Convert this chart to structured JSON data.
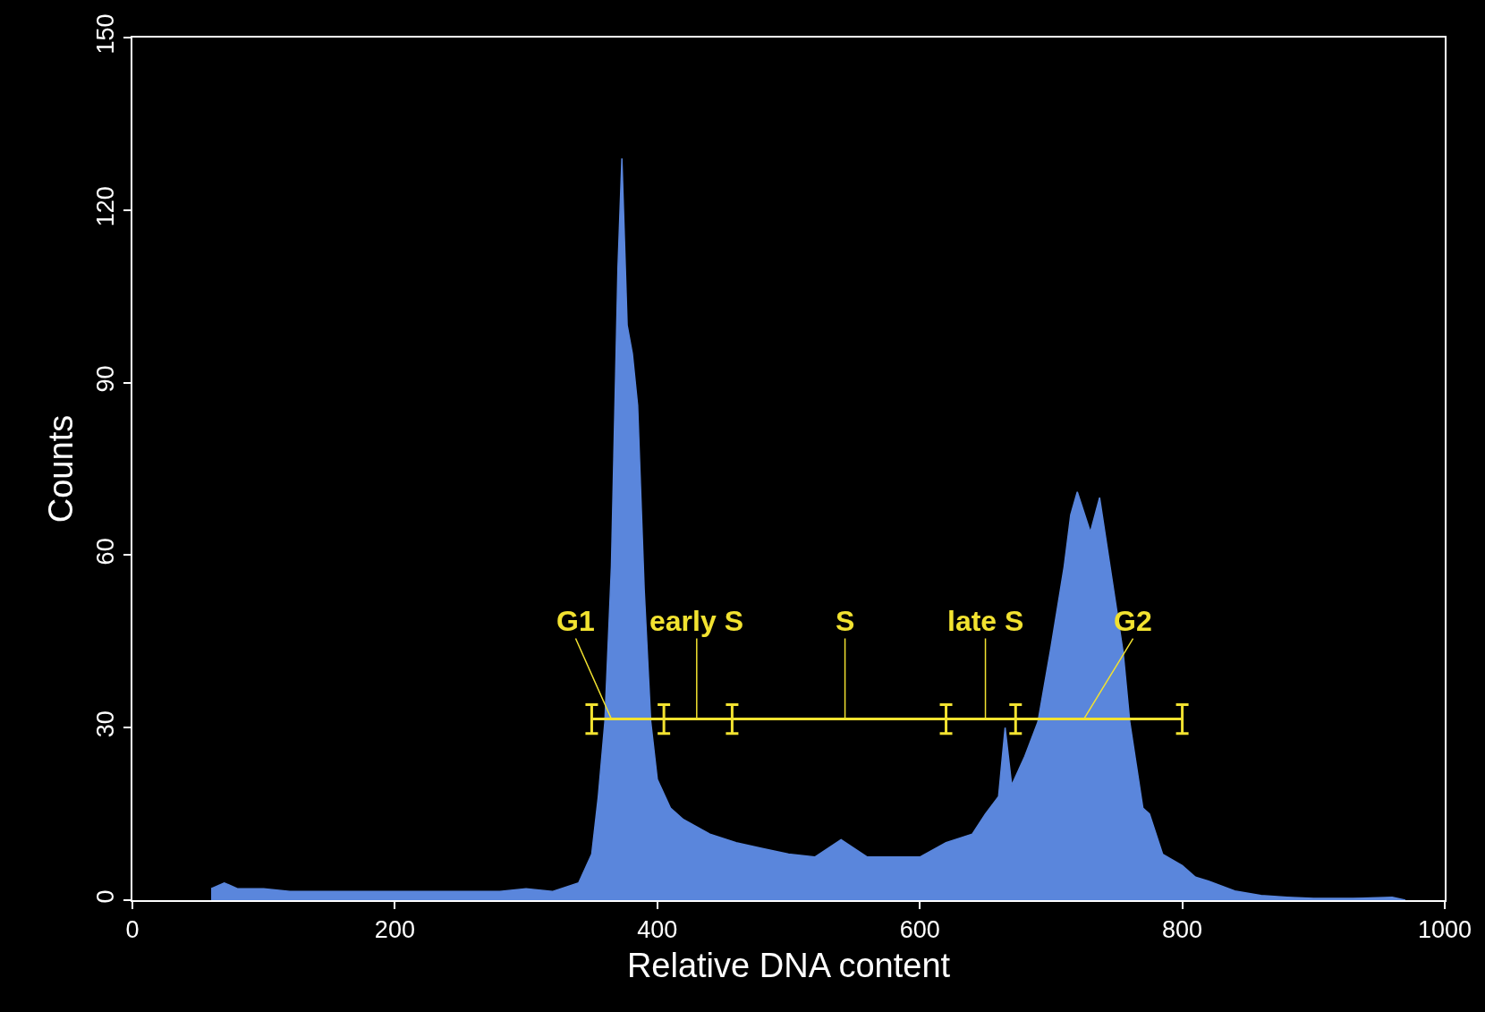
{
  "chart_data": {
    "type": "area",
    "xlabel": "Relative DNA content",
    "ylabel": "Counts",
    "xlim": [
      0,
      1000
    ],
    "ylim": [
      0,
      150
    ],
    "xticks": [
      0,
      200,
      400,
      600,
      800,
      1000
    ],
    "yticks": [
      0,
      30,
      60,
      90,
      120,
      150
    ],
    "grid": false,
    "series": [
      {
        "color": "#5a86dc",
        "x": [
          60,
          70,
          80,
          100,
          120,
          140,
          160,
          180,
          200,
          220,
          240,
          260,
          280,
          300,
          320,
          340,
          350,
          355,
          360,
          365,
          370,
          373,
          377,
          381,
          385,
          390,
          395,
          400,
          410,
          420,
          440,
          460,
          480,
          500,
          520,
          540,
          560,
          580,
          600,
          620,
          640,
          650,
          660,
          665,
          670,
          680,
          690,
          700,
          710,
          715,
          720,
          730,
          737,
          745,
          755,
          760,
          770,
          775,
          785,
          800,
          810,
          820,
          840,
          860,
          880,
          900,
          930,
          960,
          970
        ],
        "values": [
          2,
          3,
          2,
          2,
          1.5,
          1.5,
          1.5,
          1.5,
          1.5,
          1.5,
          1.5,
          1.5,
          1.5,
          2,
          1.5,
          3,
          8,
          18,
          31,
          58,
          110,
          129,
          100,
          95,
          86,
          54,
          31,
          21,
          16,
          14,
          11.5,
          10,
          9,
          8,
          7.5,
          10.5,
          7.5,
          7.5,
          7.5,
          10,
          11.5,
          15,
          18,
          30,
          20,
          25,
          31,
          44,
          58,
          67,
          71,
          64,
          70,
          58,
          43,
          31,
          16,
          15,
          8,
          6,
          4,
          3.3,
          1.6,
          0.8,
          0.5,
          0.3,
          0.3,
          0.5,
          0
        ]
      },
      {
        "type": "line",
        "color": "#f2e230",
        "x": [
          350,
          405,
          457,
          620,
          673,
          800
        ],
        "values": [
          31.5,
          31.5,
          31.5,
          31.5,
          31.5,
          31.5
        ],
        "errors": [
          2.5,
          2.5,
          2.5,
          2.5,
          2.5,
          2.5
        ]
      }
    ],
    "annotations": [
      {
        "text": "G1",
        "x": 365,
        "y": 31.5
      },
      {
        "text": "early S",
        "x": 430,
        "y": 31.5
      },
      {
        "text": "S",
        "x": 543,
        "y": 31.5
      },
      {
        "text": "late S",
        "x": 650,
        "y": 31.5
      },
      {
        "text": "G2",
        "x": 725,
        "y": 31.5
      }
    ]
  }
}
